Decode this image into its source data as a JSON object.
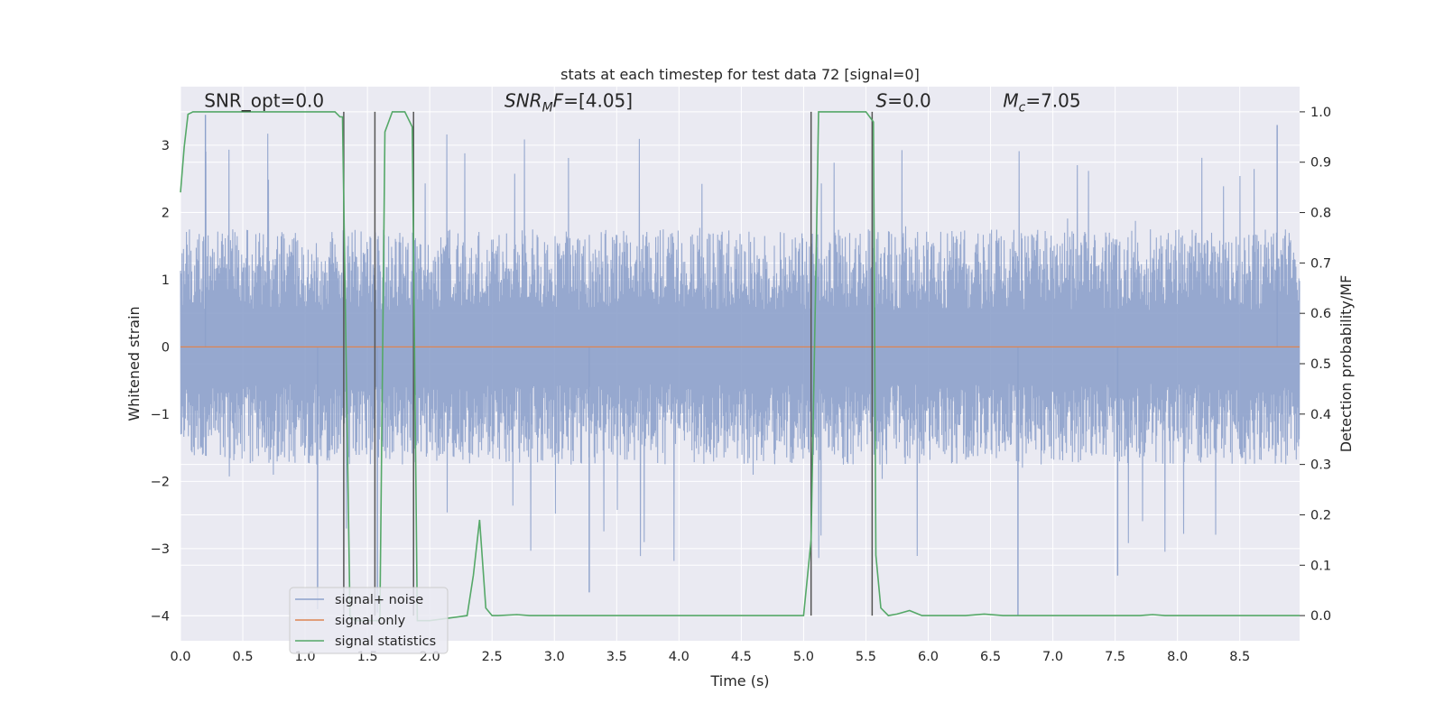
{
  "chart_data": {
    "type": "line",
    "title": "stats at each timestep for test data 72 [signal=0]",
    "xlabel": "Time (s)",
    "ylabel": "Whitened strain",
    "y2label": "Detection probability/MF",
    "xlim": [
      0.0,
      8.98
    ],
    "ylim": [
      -4.37,
      3.87
    ],
    "y2lim": [
      -0.05,
      1.05
    ],
    "xticks": [
      0.0,
      0.5,
      1.0,
      1.5,
      2.0,
      2.5,
      3.0,
      3.5,
      4.0,
      4.5,
      5.0,
      5.5,
      6.0,
      6.5,
      7.0,
      7.5,
      8.0,
      8.5
    ],
    "xtick_labels": [
      "0.0",
      "0.5",
      "1.0",
      "1.5",
      "2.0",
      "2.5",
      "3.0",
      "3.5",
      "4.0",
      "4.5",
      "5.0",
      "5.5",
      "6.0",
      "6.5",
      "7.0",
      "7.5",
      "8.0",
      "8.5"
    ],
    "yticks": [
      -4,
      -3,
      -2,
      -1,
      0,
      1,
      2,
      3
    ],
    "ytick_labels": [
      "−4",
      "−3",
      "−2",
      "−1",
      "0",
      "1",
      "2",
      "3"
    ],
    "y2ticks": [
      0.0,
      0.1,
      0.2,
      0.3,
      0.4,
      0.5,
      0.6,
      0.7,
      0.8,
      0.9,
      1.0
    ],
    "y2tick_labels": [
      "0.0",
      "0.1",
      "0.2",
      "0.3",
      "0.4",
      "0.5",
      "0.6",
      "0.7",
      "0.8",
      "0.9",
      "1.0"
    ],
    "grid": true,
    "legend_placement": "lower-left",
    "colors": {
      "noise": "#8da1cb",
      "signal": "#dd8452",
      "stats": "#55a868",
      "vlines": "#555555",
      "axes_bg": "#eaeaf2",
      "grid": "#ffffff"
    },
    "annotations": [
      {
        "x": 0.19,
        "y2": 1.01,
        "parts": [
          {
            "t": "SNR_opt=0.0",
            "i": false
          }
        ]
      },
      {
        "x": 2.6,
        "y2": 1.01,
        "parts": [
          {
            "t": "SNR",
            "i": true
          },
          {
            "t": "M",
            "i": true,
            "sub": true
          },
          {
            "t": "F",
            "i": true
          },
          {
            "t": "=[4.05]",
            "i": false
          }
        ]
      },
      {
        "x": 5.58,
        "y2": 1.01,
        "parts": [
          {
            "t": "S",
            "i": true
          },
          {
            "t": "=0.0",
            "i": false
          }
        ]
      },
      {
        "x": 6.6,
        "y2": 1.01,
        "parts": [
          {
            "t": "M",
            "i": true
          },
          {
            "t": "c",
            "i": true,
            "sub": true
          },
          {
            "t": "=7.05",
            "i": false
          }
        ]
      }
    ],
    "series": [
      {
        "name": "signal+ noise",
        "axis": "left",
        "kind": "noise_band",
        "t_range": [
          0.0,
          8.98
        ],
        "band": [
          -1.75,
          1.75
        ],
        "spike_up_max": 3.45,
        "spike_down_min": -4.0,
        "visible_extremes": [
          {
            "x": 0.2,
            "y": 3.45
          },
          {
            "x": 1.1,
            "y": -3.9
          },
          {
            "x": 1.58,
            "y": -3.95
          },
          {
            "x": 3.28,
            "y": -3.65
          },
          {
            "x": 6.72,
            "y": -4.0
          },
          {
            "x": 7.52,
            "y": -3.4
          },
          {
            "x": 8.8,
            "y": 3.3
          }
        ]
      },
      {
        "name": "signal only",
        "axis": "left",
        "x": [
          0.0,
          8.98
        ],
        "y": [
          0.0,
          0.0
        ]
      },
      {
        "name": "signal statistics",
        "axis": "right",
        "x": [
          0.0,
          0.03,
          0.06,
          0.1,
          0.2,
          1.2,
          1.24,
          1.28,
          1.3,
          1.36,
          1.4,
          1.6,
          1.64,
          1.7,
          1.8,
          1.86,
          1.9,
          2.0,
          2.3,
          2.35,
          2.4,
          2.45,
          2.5,
          2.55,
          2.7,
          2.8,
          5.0,
          5.06,
          5.1,
          5.12,
          5.2,
          5.5,
          5.56,
          5.58,
          5.62,
          5.68,
          5.75,
          5.85,
          5.95,
          6.3,
          6.45,
          6.6,
          7.7,
          7.8,
          7.9,
          8.98
        ],
        "y": [
          0.84,
          0.93,
          0.995,
          1.0,
          1.0,
          1.0,
          1.0,
          0.99,
          0.99,
          0.0,
          -0.01,
          -0.01,
          0.96,
          1.0,
          1.0,
          0.97,
          -0.01,
          -0.01,
          0.0,
          0.08,
          0.19,
          0.015,
          0.0,
          0.0,
          0.002,
          0.0,
          0.0,
          0.15,
          0.7,
          1.0,
          1.0,
          1.0,
          0.98,
          0.12,
          0.015,
          0.0,
          0.003,
          0.01,
          0.0,
          0.0,
          0.003,
          0.0,
          0.0,
          0.002,
          0.0,
          0.0
        ]
      }
    ],
    "vertical_lines": [
      1.31,
      1.56,
      1.87,
      5.06,
      5.55
    ],
    "vertical_line_y2": [
      0.0,
      1.0
    ]
  }
}
